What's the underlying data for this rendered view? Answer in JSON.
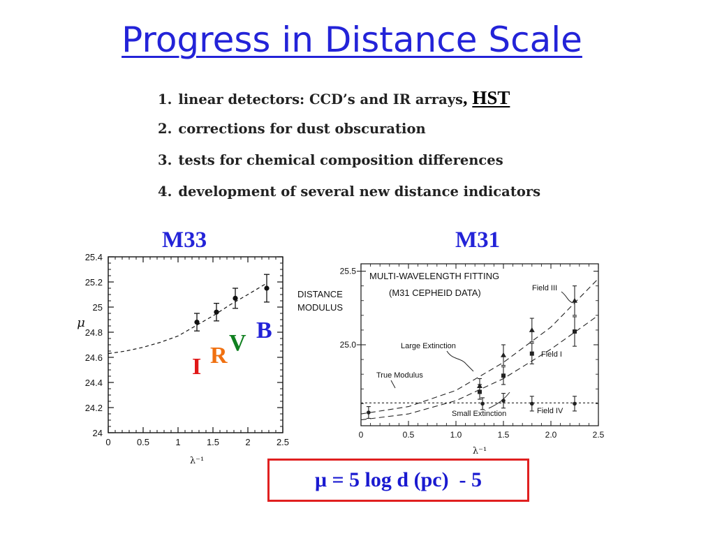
{
  "slide": {
    "title": "Progress in Distance Scale",
    "items": [
      {
        "num": "1.",
        "text": "linear detectors: CCD’s and IR arrays"
      },
      {
        "num": "2.",
        "text": "corrections for dust obscuration"
      },
      {
        "num": "3.",
        "text": "tests for chemical composition differences"
      },
      {
        "num": "4.",
        "text": "development of several new distance indicators"
      }
    ],
    "item1_suffix_comma": ",",
    "item1_link": "HST",
    "left_panel_label": "M33",
    "right_panel_label": "M31",
    "bands": [
      {
        "letter": "I",
        "color": "#e01818"
      },
      {
        "letter": "R",
        "color": "#f07010"
      },
      {
        "letter": "V",
        "color": "#108020"
      },
      {
        "letter": "B",
        "color": "#2323d8"
      }
    ],
    "formula": "μ = 5 log d (pc)  - 5"
  },
  "chart_data": [
    {
      "type": "scatter",
      "panel": "M33",
      "xlabel": "λ⁻¹",
      "ylabel": "μ",
      "xlim": [
        0,
        2.5
      ],
      "ylim": [
        24,
        25.4
      ],
      "xticks": [
        "0",
        "0.5",
        "1",
        "1.5",
        "2",
        "2.5"
      ],
      "yticks": [
        "24",
        "24.2",
        "24.4",
        "24.6",
        "24.8",
        "25",
        "25.2",
        "25.4"
      ],
      "grid": false,
      "series": [
        {
          "x": [
            1.27,
            1.55,
            1.82,
            2.27
          ],
          "y": [
            24.88,
            24.96,
            25.07,
            25.15
          ],
          "yerr": [
            0.07,
            0.07,
            0.08,
            0.11
          ]
        }
      ],
      "model_curve": {
        "style": "dashed",
        "x": [
          0,
          0.25,
          0.5,
          0.75,
          1.0,
          1.25,
          1.5,
          1.75,
          2.0,
          2.27
        ],
        "y": [
          24.63,
          24.65,
          24.68,
          24.72,
          24.77,
          24.85,
          24.93,
          25.02,
          25.1,
          25.19
        ]
      }
    },
    {
      "type": "scatter",
      "panel": "M31",
      "title": "MULTI-WAVELENGTH FITTING",
      "subtitle": "(M31 CEPHEID DATA)",
      "xlabel": "λ⁻¹",
      "ylabel_lines": [
        "DISTANCE",
        "MODULUS"
      ],
      "xlim": [
        0,
        2.5
      ],
      "ylim": [
        24.45,
        25.55
      ],
      "xticks": [
        "0",
        "0.5",
        "1.0",
        "1.5",
        "2.0",
        "2.5"
      ],
      "yticks": [
        "25.0",
        "25.5"
      ],
      "grid": false,
      "series": [
        {
          "name": "Field III",
          "x": [
            1.25,
            1.5,
            1.8,
            2.25
          ],
          "y": [
            24.72,
            24.93,
            25.1,
            25.3
          ],
          "yerr": [
            0.05,
            0.07,
            0.08,
            0.1
          ]
        },
        {
          "name": "Field I",
          "x": [
            1.25,
            1.5,
            1.8,
            2.25
          ],
          "y": [
            24.68,
            24.79,
            24.94,
            25.09
          ],
          "yerr": [
            0.05,
            0.06,
            0.07,
            0.1
          ]
        },
        {
          "name": "Field IV",
          "x": [
            0.08,
            1.28,
            1.5,
            1.8,
            2.25
          ],
          "y": [
            24.54,
            24.6,
            24.62,
            24.6,
            24.6
          ],
          "yerr": [
            0.04,
            0.04,
            0.05,
            0.05,
            0.05
          ]
        }
      ],
      "model_curves": [
        {
          "style": "dashed",
          "x": [
            0,
            0.5,
            1.0,
            1.5,
            2.0,
            2.5
          ],
          "y": [
            24.53,
            24.58,
            24.69,
            24.88,
            25.12,
            25.45
          ]
        },
        {
          "style": "dashed",
          "x": [
            0,
            0.5,
            1.0,
            1.5,
            2.0,
            2.5
          ],
          "y": [
            24.49,
            24.53,
            24.62,
            24.77,
            24.97,
            25.2
          ]
        },
        {
          "style": "short-dashed",
          "x": [
            0,
            2.5
          ],
          "y": [
            24.605,
            24.605
          ]
        }
      ],
      "annotations": [
        "Large Extinction",
        "True Modulus",
        "Small Extinction",
        "Field III",
        "Field I",
        "Field IV"
      ]
    }
  ]
}
